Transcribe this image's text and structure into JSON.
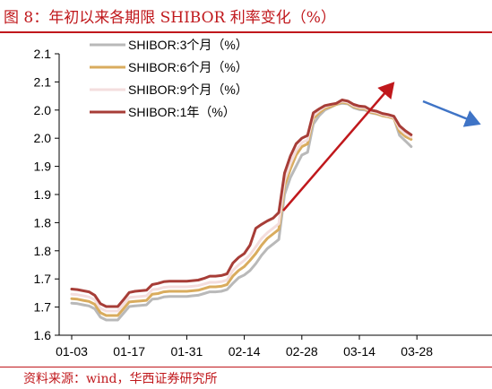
{
  "figure": {
    "title": "图 8：年初以来各期限 SHIBOR 利率变化（%）",
    "source": "资料来源：wind，华西证券研究所"
  },
  "colors": {
    "title": "#c0181c",
    "series_3m": "#b9b9b9",
    "series_6m": "#d9ac5e",
    "series_9m": "#f4dede",
    "series_1y": "#a73d37",
    "arrow_up": "#c0181c",
    "arrow_down": "#3f74c6"
  },
  "chart_data": {
    "type": "line",
    "title": "",
    "xlabel": "",
    "ylabel": "",
    "x_tick_labels": [
      "01-03",
      "01-17",
      "01-31",
      "02-14",
      "02-28",
      "03-14",
      "03-28"
    ],
    "y_tick_labels": [
      "1.6",
      "1.7",
      "1.7",
      "1.8",
      "1.8",
      "1.9",
      "1.9",
      "2.0",
      "2.0",
      "2.1",
      "2.1"
    ],
    "ylim": [
      1.6,
      2.1
    ],
    "legend_position": "top-left",
    "grid": false,
    "x": [
      "01-03",
      "01-04",
      "01-05",
      "01-06",
      "01-07",
      "01-10",
      "01-11",
      "01-12",
      "01-13",
      "01-14",
      "01-17",
      "01-18",
      "01-19",
      "01-20",
      "01-21",
      "01-24",
      "01-25",
      "01-26",
      "01-27",
      "01-28",
      "01-29",
      "01-30",
      "02-07",
      "02-08",
      "02-09",
      "02-10",
      "02-11",
      "02-14",
      "02-15",
      "02-16",
      "02-17",
      "02-18",
      "02-21",
      "02-22",
      "02-23",
      "02-24",
      "02-25",
      "02-28",
      "03-01",
      "03-02",
      "03-03",
      "03-04",
      "03-07",
      "03-08",
      "03-09",
      "03-10",
      "03-11",
      "03-14",
      "03-15",
      "03-16",
      "03-17",
      "03-18",
      "03-21",
      "03-22",
      "03-23",
      "03-24",
      "03-25",
      "03-28",
      "03-29",
      "03-30"
    ],
    "series": [
      {
        "name": "SHIBOR:3个月（%）",
        "values": [
          1.657,
          1.656,
          1.654,
          1.652,
          1.647,
          1.632,
          1.627,
          1.627,
          1.627,
          1.639,
          1.651,
          1.652,
          1.653,
          1.654,
          1.664,
          1.665,
          1.668,
          1.669,
          1.669,
          1.669,
          1.669,
          1.67,
          1.671,
          1.674,
          1.677,
          1.677,
          1.678,
          1.681,
          1.692,
          1.702,
          1.707,
          1.715,
          1.727,
          1.742,
          1.754,
          1.762,
          1.77,
          1.85,
          1.88,
          1.9,
          1.92,
          1.925,
          1.975,
          1.99,
          2.0,
          2.005,
          2.01,
          2.012,
          2.011,
          2.004,
          2.001,
          2.0,
          1.995,
          1.993,
          1.99,
          1.988,
          1.986,
          1.955,
          1.945,
          1.935
        ]
      },
      {
        "name": "SHIBOR:6个月（%）",
        "values": [
          1.665,
          1.664,
          1.662,
          1.66,
          1.655,
          1.64,
          1.635,
          1.635,
          1.635,
          1.647,
          1.659,
          1.66,
          1.661,
          1.662,
          1.673,
          1.674,
          1.677,
          1.678,
          1.678,
          1.678,
          1.678,
          1.679,
          1.68,
          1.683,
          1.686,
          1.686,
          1.687,
          1.69,
          1.705,
          1.715,
          1.722,
          1.733,
          1.745,
          1.76,
          1.772,
          1.78,
          1.788,
          1.865,
          1.895,
          1.92,
          1.935,
          1.94,
          1.985,
          1.995,
          2.003,
          2.006,
          2.01,
          2.014,
          2.012,
          2.006,
          2.003,
          2.002,
          1.996,
          1.994,
          1.99,
          1.988,
          1.985,
          1.962,
          1.953,
          1.948
        ]
      },
      {
        "name": "SHIBOR:9个月（%）",
        "values": [
          1.673,
          1.672,
          1.67,
          1.668,
          1.663,
          1.648,
          1.643,
          1.643,
          1.643,
          1.655,
          1.667,
          1.668,
          1.669,
          1.67,
          1.681,
          1.682,
          1.685,
          1.686,
          1.686,
          1.686,
          1.686,
          1.687,
          1.688,
          1.691,
          1.694,
          1.694,
          1.695,
          1.698,
          1.715,
          1.725,
          1.733,
          1.743,
          1.757,
          1.772,
          1.782,
          1.79,
          1.798,
          1.875,
          1.905,
          1.928,
          1.942,
          1.947,
          1.99,
          1.999,
          2.006,
          2.009,
          2.012,
          2.016,
          2.014,
          2.008,
          2.005,
          2.004,
          1.998,
          1.996,
          1.992,
          1.99,
          1.987,
          1.967,
          1.958,
          1.952
        ]
      },
      {
        "name": "SHIBOR:1年（%）",
        "values": [
          1.682,
          1.681,
          1.679,
          1.677,
          1.671,
          1.656,
          1.651,
          1.651,
          1.651,
          1.663,
          1.676,
          1.678,
          1.679,
          1.68,
          1.69,
          1.692,
          1.695,
          1.696,
          1.696,
          1.696,
          1.696,
          1.697,
          1.698,
          1.701,
          1.705,
          1.705,
          1.706,
          1.709,
          1.728,
          1.738,
          1.745,
          1.76,
          1.79,
          1.797,
          1.803,
          1.808,
          1.818,
          1.888,
          1.918,
          1.94,
          1.95,
          1.955,
          1.995,
          2.002,
          2.008,
          2.01,
          2.012,
          2.018,
          2.016,
          2.01,
          2.007,
          2.006,
          2.0,
          1.998,
          1.994,
          1.992,
          1.989,
          1.972,
          1.963,
          1.956
        ]
      }
    ]
  }
}
